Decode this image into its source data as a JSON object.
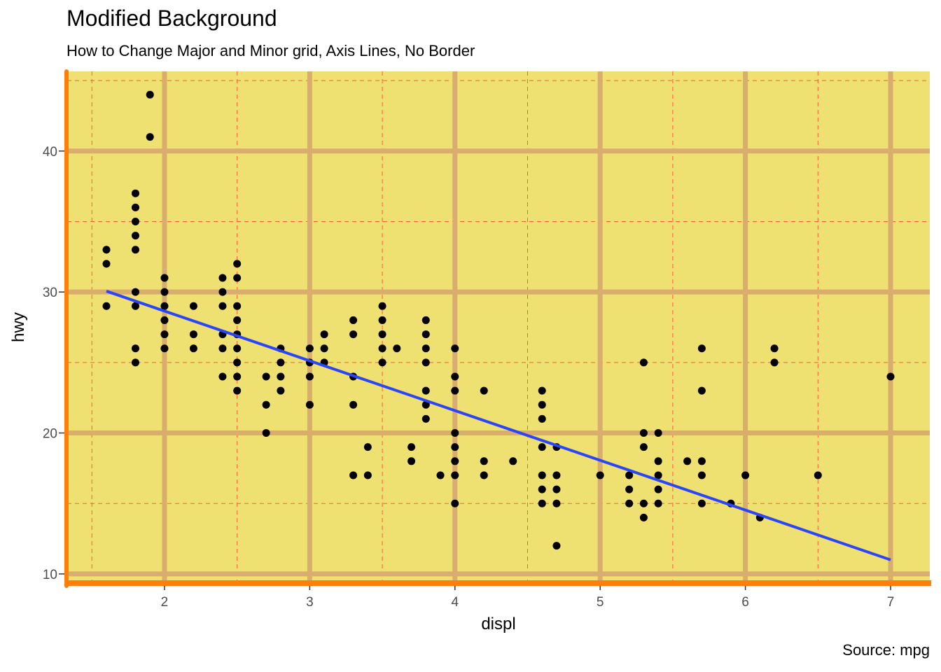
{
  "chart_data": {
    "type": "scatter",
    "title": "Modified Background",
    "subtitle": "How to Change Major and Minor grid, Axis Lines, No Border",
    "caption": "Source: mpg",
    "xlabel": "displ",
    "ylabel": "hwy",
    "xlim": [
      1.33,
      7.27
    ],
    "ylim": [
      9.35,
      45.65
    ],
    "x_ticks": [
      2,
      3,
      4,
      5,
      6,
      7
    ],
    "y_ticks": [
      10,
      20,
      30,
      40
    ],
    "x_minor_ticks": [
      1.5,
      2.5,
      3.5,
      4.5,
      5.5,
      6.5
    ],
    "y_minor_ticks": [
      15,
      25,
      35,
      45
    ],
    "grid": true,
    "colors": {
      "panel_background": "#EEE172",
      "major_grid": "#D9AD6E",
      "minor_grid": "#FF5A3C",
      "axis_line": "#FF7F0A",
      "points": "#000000",
      "trend_line": "#2B45F8"
    },
    "points": [
      [
        1.6,
        33
      ],
      [
        1.6,
        32
      ],
      [
        1.6,
        29
      ],
      [
        1.8,
        37
      ],
      [
        1.8,
        36
      ],
      [
        1.8,
        35
      ],
      [
        1.8,
        34
      ],
      [
        1.8,
        33
      ],
      [
        1.8,
        30
      ],
      [
        1.8,
        29
      ],
      [
        1.8,
        26
      ],
      [
        1.8,
        25
      ],
      [
        1.9,
        44
      ],
      [
        1.9,
        41
      ],
      [
        2.0,
        31
      ],
      [
        2.0,
        30
      ],
      [
        2.0,
        29
      ],
      [
        2.0,
        28
      ],
      [
        2.0,
        27
      ],
      [
        2.0,
        26
      ],
      [
        2.2,
        29
      ],
      [
        2.2,
        27
      ],
      [
        2.2,
        26
      ],
      [
        2.4,
        31
      ],
      [
        2.4,
        30
      ],
      [
        2.4,
        29
      ],
      [
        2.4,
        27
      ],
      [
        2.4,
        26
      ],
      [
        2.4,
        24
      ],
      [
        2.5,
        32
      ],
      [
        2.5,
        31
      ],
      [
        2.5,
        29
      ],
      [
        2.5,
        28
      ],
      [
        2.5,
        27
      ],
      [
        2.5,
        26
      ],
      [
        2.5,
        25
      ],
      [
        2.5,
        24
      ],
      [
        2.5,
        23
      ],
      [
        2.7,
        24
      ],
      [
        2.7,
        22
      ],
      [
        2.7,
        20
      ],
      [
        2.8,
        26
      ],
      [
        2.8,
        25
      ],
      [
        2.8,
        24
      ],
      [
        2.8,
        23
      ],
      [
        3.0,
        26
      ],
      [
        3.0,
        25
      ],
      [
        3.0,
        24
      ],
      [
        3.0,
        22
      ],
      [
        3.1,
        27
      ],
      [
        3.1,
        26
      ],
      [
        3.1,
        25
      ],
      [
        3.3,
        28
      ],
      [
        3.3,
        27
      ],
      [
        3.3,
        24
      ],
      [
        3.3,
        22
      ],
      [
        3.3,
        17
      ],
      [
        3.4,
        19
      ],
      [
        3.4,
        17
      ],
      [
        3.5,
        29
      ],
      [
        3.5,
        28
      ],
      [
        3.5,
        27
      ],
      [
        3.5,
        26
      ],
      [
        3.5,
        25
      ],
      [
        3.6,
        26
      ],
      [
        3.7,
        19
      ],
      [
        3.7,
        18
      ],
      [
        3.8,
        28
      ],
      [
        3.8,
        27
      ],
      [
        3.8,
        26
      ],
      [
        3.8,
        25
      ],
      [
        3.8,
        23
      ],
      [
        3.8,
        22
      ],
      [
        3.8,
        21
      ],
      [
        3.9,
        17
      ],
      [
        4.0,
        26
      ],
      [
        4.0,
        24
      ],
      [
        4.0,
        23
      ],
      [
        4.0,
        20
      ],
      [
        4.0,
        19
      ],
      [
        4.0,
        18
      ],
      [
        4.0,
        17
      ],
      [
        4.0,
        15
      ],
      [
        4.2,
        23
      ],
      [
        4.2,
        18
      ],
      [
        4.2,
        17
      ],
      [
        4.4,
        18
      ],
      [
        4.6,
        23
      ],
      [
        4.6,
        22
      ],
      [
        4.6,
        21
      ],
      [
        4.6,
        19
      ],
      [
        4.6,
        17
      ],
      [
        4.6,
        16
      ],
      [
        4.6,
        15
      ],
      [
        4.7,
        19
      ],
      [
        4.7,
        17
      ],
      [
        4.7,
        16
      ],
      [
        4.7,
        15
      ],
      [
        4.7,
        12
      ],
      [
        5.0,
        17
      ],
      [
        5.2,
        17
      ],
      [
        5.2,
        16
      ],
      [
        5.2,
        15
      ],
      [
        5.3,
        25
      ],
      [
        5.3,
        20
      ],
      [
        5.3,
        19
      ],
      [
        5.3,
        15
      ],
      [
        5.3,
        14
      ],
      [
        5.4,
        20
      ],
      [
        5.4,
        18
      ],
      [
        5.4,
        17
      ],
      [
        5.4,
        16
      ],
      [
        5.4,
        15
      ],
      [
        5.6,
        18
      ],
      [
        5.7,
        26
      ],
      [
        5.7,
        23
      ],
      [
        5.7,
        18
      ],
      [
        5.7,
        17
      ],
      [
        5.7,
        15
      ],
      [
        5.9,
        15
      ],
      [
        6.0,
        17
      ],
      [
        6.1,
        14
      ],
      [
        6.2,
        26
      ],
      [
        6.2,
        25
      ],
      [
        6.5,
        17
      ],
      [
        7.0,
        24
      ]
    ],
    "trend_line": {
      "x": [
        1.6,
        7.0
      ],
      "y": [
        30.06,
        11.0
      ]
    }
  }
}
